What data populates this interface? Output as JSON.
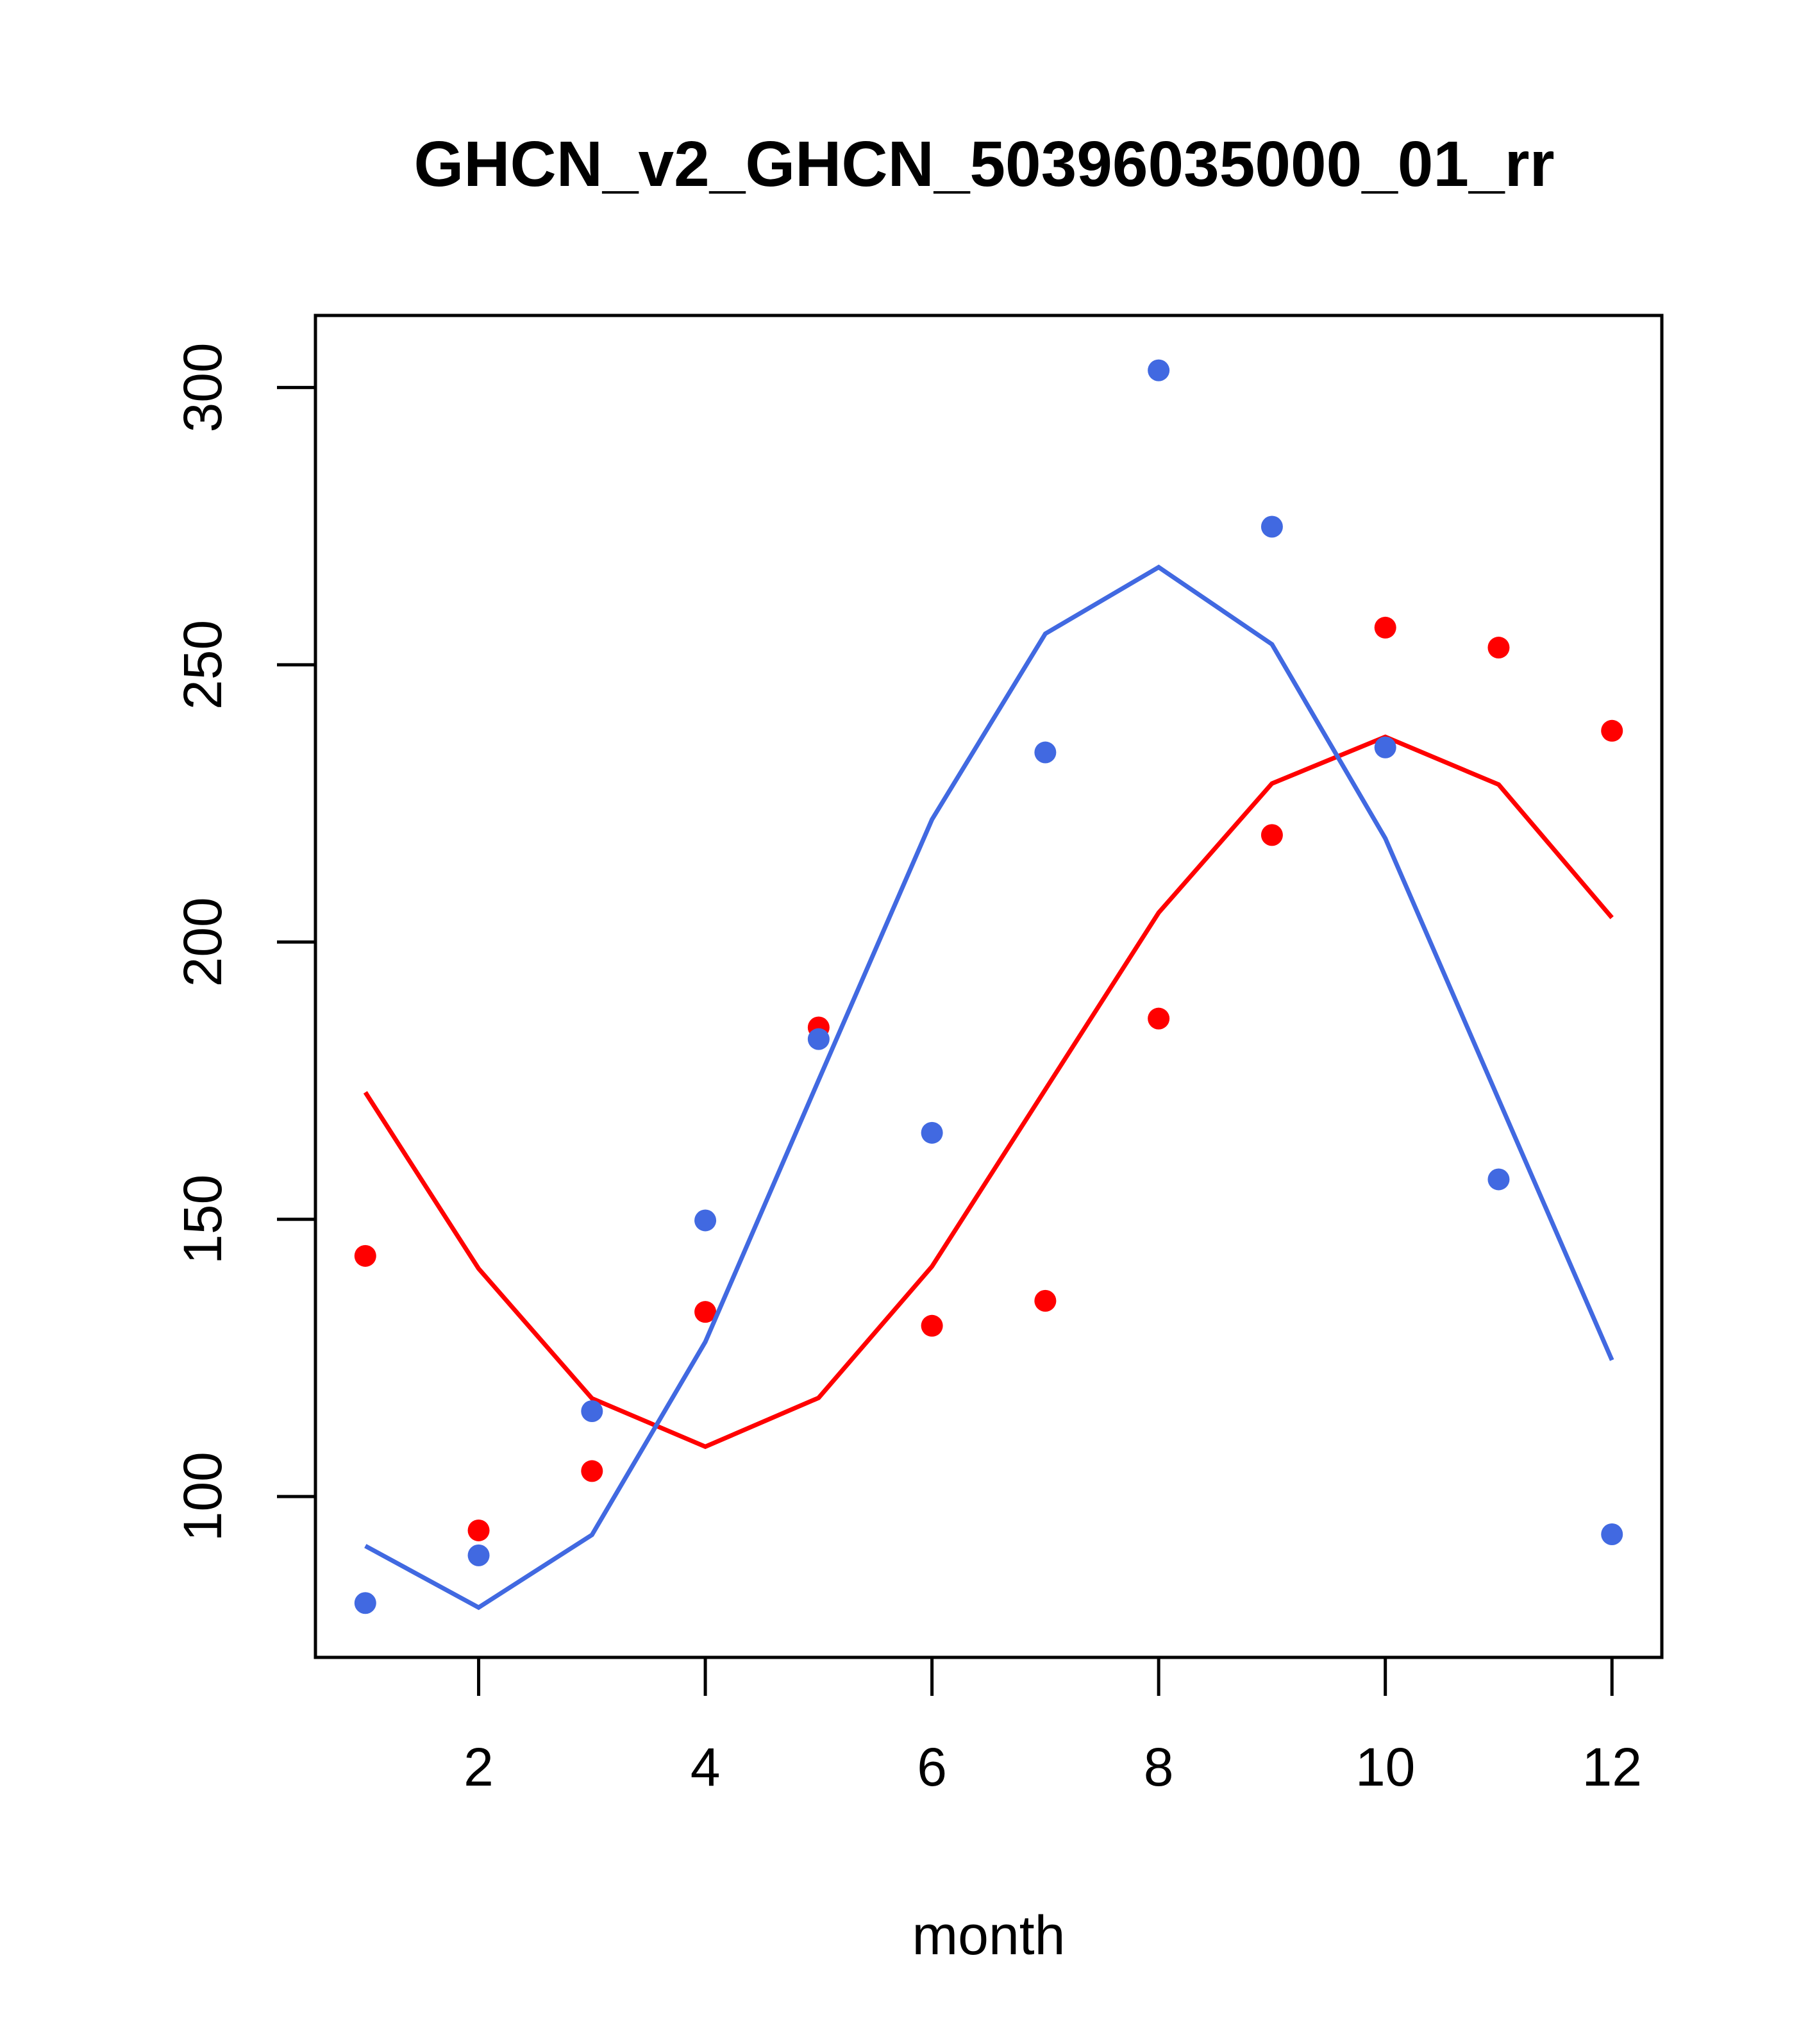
{
  "chart_data": {
    "type": "line",
    "title": "GHCN_v2_GHCN_50396035000_01_rr",
    "xlabel": "month",
    "ylabel": "",
    "xlim": [
      0.56,
      12.44
    ],
    "ylim": [
      71,
      313
    ],
    "x_ticks": [
      2,
      4,
      6,
      8,
      10,
      12
    ],
    "y_ticks": [
      100,
      150,
      200,
      250,
      300
    ],
    "x_tick_labels": [
      "2",
      "4",
      "6",
      "8",
      "10",
      "12"
    ],
    "y_tick_labels": [
      "100",
      "150",
      "200",
      "250",
      "300"
    ],
    "grid": false,
    "legend": "none",
    "x": [
      1,
      2,
      3,
      4,
      5,
      6,
      7,
      8,
      9,
      10,
      11,
      12
    ],
    "series": [
      {
        "color": "#ff0000",
        "points": [
          143.4,
          93.9,
          104.6,
          133.3,
          184.6,
          130.8,
          135.3,
          186.2,
          219.3,
          256.7,
          253.1,
          238.1
        ],
        "line": [
          172.9,
          141.1,
          117.7,
          109.0,
          117.8,
          141.5,
          173.4,
          205.3,
          228.6,
          237.0,
          228.4,
          204.4
        ]
      },
      {
        "color": "#4169e1",
        "points": [
          80.8,
          89.4,
          115.4,
          149.8,
          182.5,
          165.6,
          234.2,
          303.1,
          274.9,
          235.1,
          157.2,
          93.2
        ],
        "line": [
          91.1,
          80.0,
          93.1,
          127.9,
          175.1,
          222.1,
          255.6,
          267.6,
          253.7,
          218.7,
          171.6,
          124.6
        ]
      }
    ]
  }
}
